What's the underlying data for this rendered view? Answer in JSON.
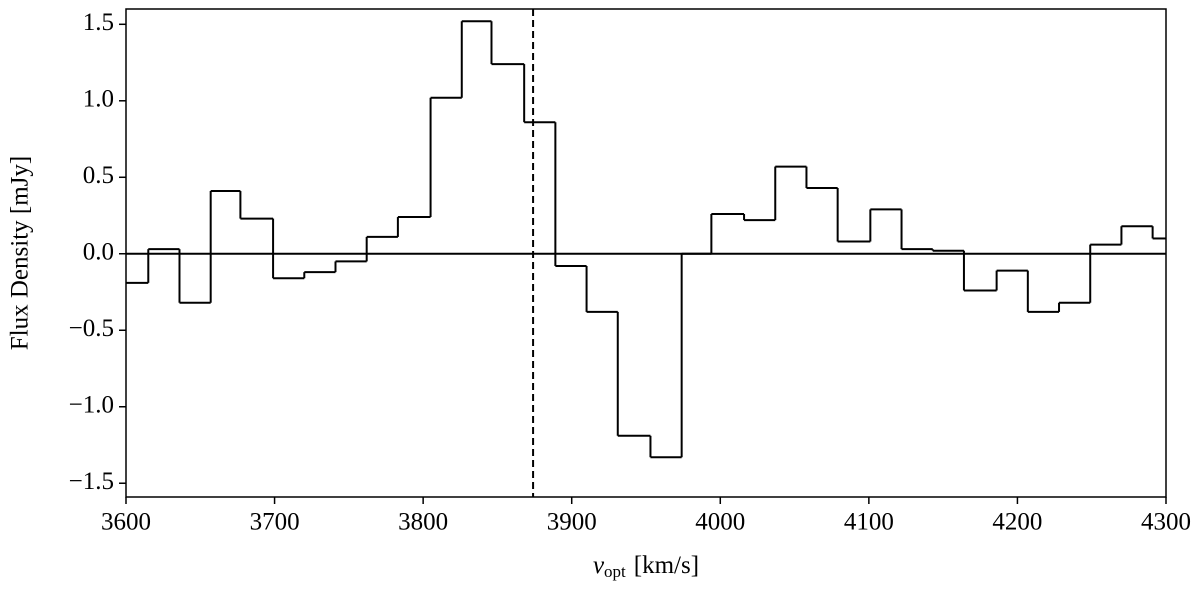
{
  "chart_data": {
    "type": "histogram",
    "y_label": "Flux Density [mJy]",
    "x_label": {
      "symbol": "v",
      "subscript": "opt",
      "unit": "[km/s]"
    },
    "bins": [
      3600,
      3615,
      3636,
      3657,
      3677,
      3699,
      3720,
      3741,
      3762,
      3783,
      3805,
      3826,
      3846,
      3868,
      3889,
      3910,
      3931,
      3953,
      3974,
      3994,
      4016,
      4037,
      4058,
      4079,
      4101,
      4122,
      4143,
      4164,
      4186,
      4207,
      4228,
      4249,
      4270,
      4291,
      4300
    ],
    "values": [
      -0.19,
      0.03,
      -0.32,
      0.41,
      0.23,
      -0.16,
      -0.12,
      -0.05,
      0.11,
      0.24,
      1.02,
      1.52,
      1.24,
      0.86,
      -0.08,
      -0.38,
      -1.19,
      -1.33,
      0.0,
      0.26,
      0.22,
      0.57,
      0.43,
      0.08,
      0.29,
      0.03,
      0.02,
      -0.24,
      -0.11,
      -0.38,
      -0.32,
      0.06,
      0.18,
      0.1
    ],
    "color": "#000000",
    "hline": 0,
    "vline": 3874,
    "xlim": [
      3600,
      4300
    ],
    "xticks": [
      3600,
      3700,
      3800,
      3900,
      4000,
      4100,
      4200,
      4300
    ],
    "ylim": [
      -1.59,
      1.6
    ],
    "yticks": [
      {
        "value": -1.5,
        "label": "−1.5"
      },
      {
        "value": -1.0,
        "label": "−1.0"
      },
      {
        "value": -0.5,
        "label": "−0.5"
      },
      {
        "value": 0,
        "label": "0.0"
      },
      0.5,
      {
        "value": 1.0,
        "label": "1.0"
      },
      1.5
    ],
    "grid": false
  }
}
